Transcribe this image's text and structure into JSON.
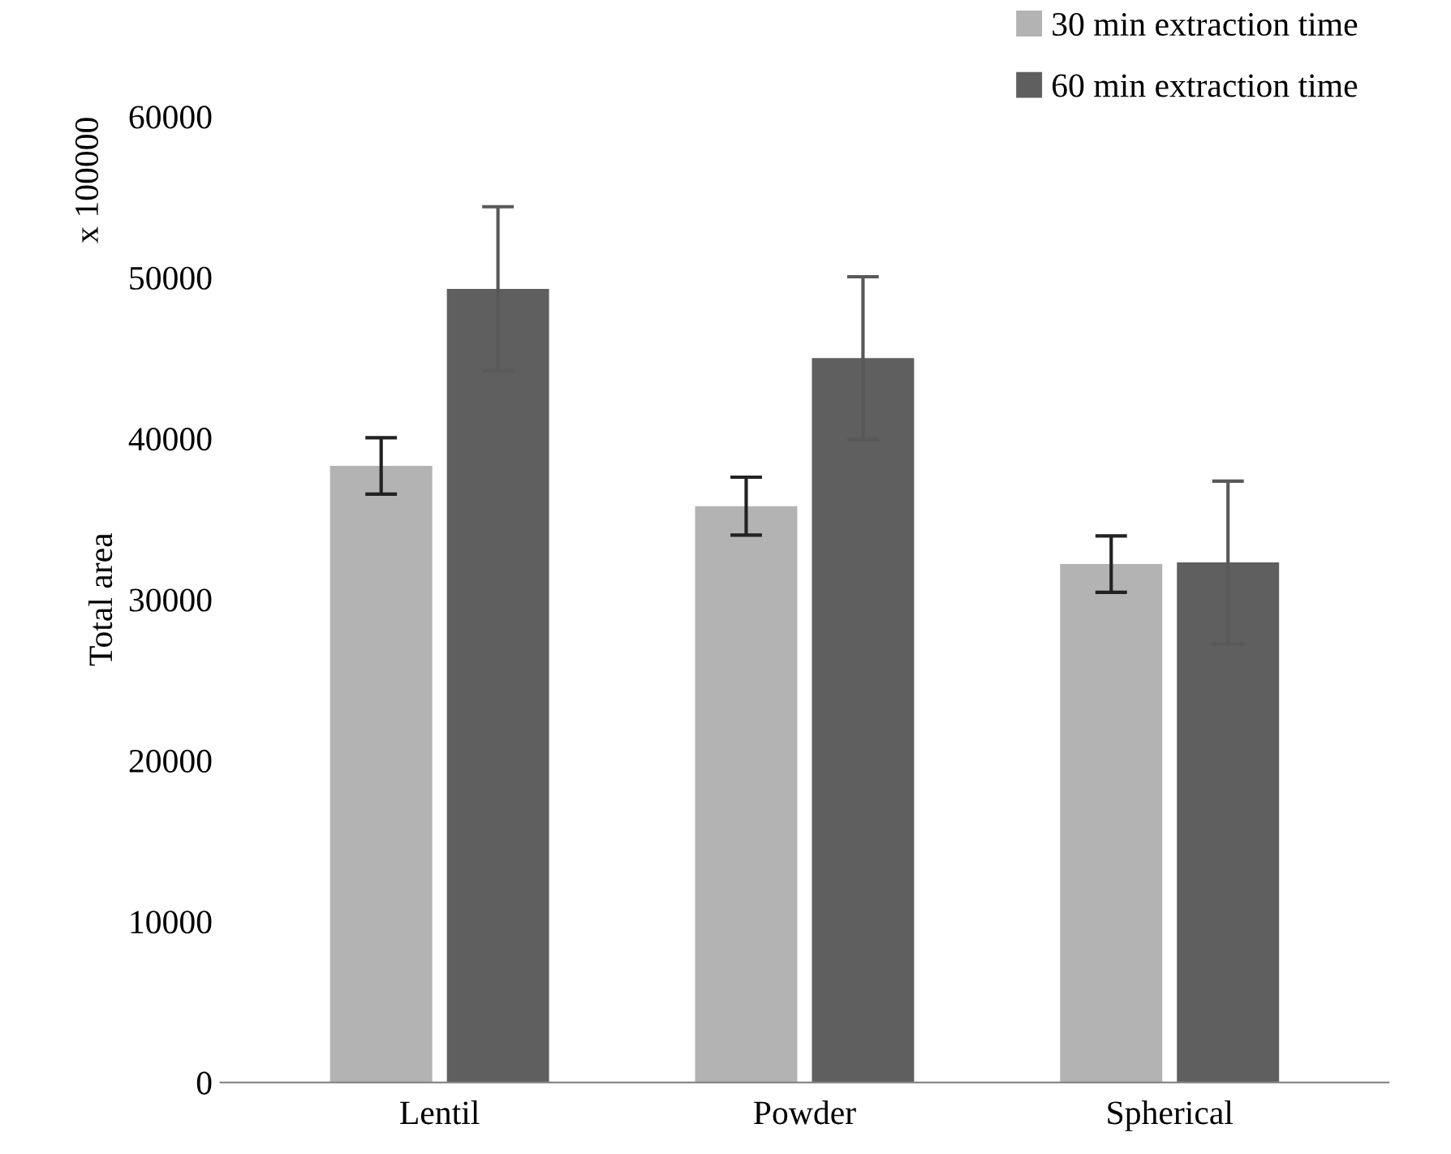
{
  "chart_data": {
    "type": "bar",
    "ylabel": "Total area",
    "annotations": [
      "x 100000"
    ],
    "categories": [
      "Lentil",
      "Powder",
      "Spherical"
    ],
    "series": [
      {
        "name": "30 min extraction time",
        "color": "#b3b3b3",
        "values": [
          38300,
          35800,
          32200
        ],
        "errors": [
          1750,
          1800,
          1750
        ]
      },
      {
        "name": "60 min extraction time",
        "color": "#5f5f5f",
        "values": [
          49300,
          45000,
          32300
        ],
        "errors": [
          5100,
          5050,
          5050
        ]
      }
    ],
    "ylim": [
      0,
      60000
    ],
    "yticks": [
      0,
      10000,
      20000,
      30000,
      40000,
      50000,
      60000
    ],
    "grid": false,
    "legend": "top right"
  }
}
